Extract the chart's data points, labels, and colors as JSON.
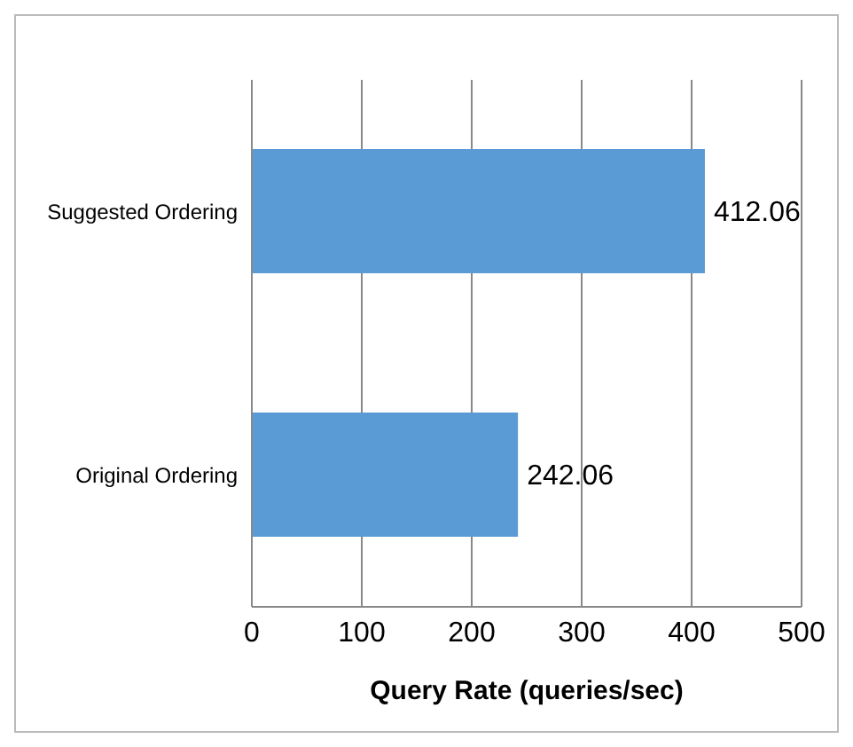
{
  "chart_data": {
    "type": "bar",
    "orientation": "horizontal",
    "categories": [
      "Suggested Ordering",
      "Original Ordering"
    ],
    "values": [
      412.06,
      242.06
    ],
    "color": "#5b9bd5",
    "xlim": [
      0,
      500
    ],
    "xticks": [
      0,
      100,
      200,
      300,
      400,
      500
    ],
    "xlabel": "Query Rate (queries/sec)",
    "grid": "x",
    "data_labels": true
  }
}
